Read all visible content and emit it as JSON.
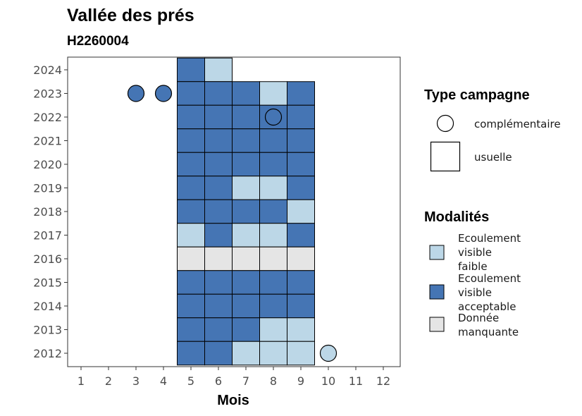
{
  "chart_data": {
    "type": "heatmap",
    "title": "Vallée des prés",
    "subtitle": "H2260004",
    "xlabel": "Mois",
    "ylabel": "",
    "x_ticks": [
      "1",
      "2",
      "3",
      "4",
      "5",
      "6",
      "7",
      "8",
      "9",
      "10",
      "11",
      "12"
    ],
    "y_ticks": [
      "2012",
      "2013",
      "2014",
      "2015",
      "2016",
      "2017",
      "2018",
      "2019",
      "2020",
      "2021",
      "2022",
      "2023",
      "2024"
    ],
    "xlim": [
      0.5,
      12.5
    ],
    "ylim": [
      2011.5,
      2024.5
    ],
    "grid": false,
    "legend_position": "right",
    "modalites": [
      {
        "key": "faible",
        "label_lines": [
          "Ecoulement",
          "visible",
          "faible"
        ],
        "color": "#bcd7e7"
      },
      {
        "key": "acceptable",
        "label_lines": [
          "Ecoulement",
          "visible",
          "acceptable"
        ],
        "color": "#4575b4"
      },
      {
        "key": "manquante",
        "label_lines": [
          "Donnée",
          "manquante"
        ],
        "color": "#e5e5e5"
      }
    ],
    "type_campagne": {
      "title": "Type campagne",
      "items": [
        {
          "key": "complementaire",
          "label": "complémentaire",
          "shape": "circle"
        },
        {
          "key": "usuelle",
          "label": "usuelle",
          "shape": "square"
        }
      ]
    },
    "modalites_title": "Modalités",
    "usuelle": [
      {
        "year": 2024,
        "month": 5,
        "modalite": "acceptable"
      },
      {
        "year": 2024,
        "month": 6,
        "modalite": "faible"
      },
      {
        "year": 2023,
        "month": 5,
        "modalite": "acceptable"
      },
      {
        "year": 2023,
        "month": 6,
        "modalite": "acceptable"
      },
      {
        "year": 2023,
        "month": 7,
        "modalite": "acceptable"
      },
      {
        "year": 2023,
        "month": 8,
        "modalite": "faible"
      },
      {
        "year": 2023,
        "month": 9,
        "modalite": "acceptable"
      },
      {
        "year": 2022,
        "month": 5,
        "modalite": "acceptable"
      },
      {
        "year": 2022,
        "month": 6,
        "modalite": "acceptable"
      },
      {
        "year": 2022,
        "month": 7,
        "modalite": "acceptable"
      },
      {
        "year": 2022,
        "month": 8,
        "modalite": "acceptable"
      },
      {
        "year": 2022,
        "month": 9,
        "modalite": "acceptable"
      },
      {
        "year": 2021,
        "month": 5,
        "modalite": "acceptable"
      },
      {
        "year": 2021,
        "month": 6,
        "modalite": "acceptable"
      },
      {
        "year": 2021,
        "month": 7,
        "modalite": "acceptable"
      },
      {
        "year": 2021,
        "month": 8,
        "modalite": "acceptable"
      },
      {
        "year": 2021,
        "month": 9,
        "modalite": "acceptable"
      },
      {
        "year": 2020,
        "month": 5,
        "modalite": "acceptable"
      },
      {
        "year": 2020,
        "month": 6,
        "modalite": "acceptable"
      },
      {
        "year": 2020,
        "month": 7,
        "modalite": "acceptable"
      },
      {
        "year": 2020,
        "month": 8,
        "modalite": "acceptable"
      },
      {
        "year": 2020,
        "month": 9,
        "modalite": "acceptable"
      },
      {
        "year": 2019,
        "month": 5,
        "modalite": "acceptable"
      },
      {
        "year": 2019,
        "month": 6,
        "modalite": "acceptable"
      },
      {
        "year": 2019,
        "month": 7,
        "modalite": "faible"
      },
      {
        "year": 2019,
        "month": 8,
        "modalite": "faible"
      },
      {
        "year": 2019,
        "month": 9,
        "modalite": "acceptable"
      },
      {
        "year": 2018,
        "month": 5,
        "modalite": "acceptable"
      },
      {
        "year": 2018,
        "month": 6,
        "modalite": "acceptable"
      },
      {
        "year": 2018,
        "month": 7,
        "modalite": "acceptable"
      },
      {
        "year": 2018,
        "month": 8,
        "modalite": "acceptable"
      },
      {
        "year": 2018,
        "month": 9,
        "modalite": "faible"
      },
      {
        "year": 2017,
        "month": 5,
        "modalite": "faible"
      },
      {
        "year": 2017,
        "month": 6,
        "modalite": "acceptable"
      },
      {
        "year": 2017,
        "month": 7,
        "modalite": "faible"
      },
      {
        "year": 2017,
        "month": 8,
        "modalite": "faible"
      },
      {
        "year": 2017,
        "month": 9,
        "modalite": "acceptable"
      },
      {
        "year": 2016,
        "month": 5,
        "modalite": "manquante"
      },
      {
        "year": 2016,
        "month": 6,
        "modalite": "manquante"
      },
      {
        "year": 2016,
        "month": 7,
        "modalite": "manquante"
      },
      {
        "year": 2016,
        "month": 8,
        "modalite": "manquante"
      },
      {
        "year": 2016,
        "month": 9,
        "modalite": "manquante"
      },
      {
        "year": 2015,
        "month": 5,
        "modalite": "acceptable"
      },
      {
        "year": 2015,
        "month": 6,
        "modalite": "acceptable"
      },
      {
        "year": 2015,
        "month": 7,
        "modalite": "acceptable"
      },
      {
        "year": 2015,
        "month": 8,
        "modalite": "acceptable"
      },
      {
        "year": 2015,
        "month": 9,
        "modalite": "acceptable"
      },
      {
        "year": 2014,
        "month": 5,
        "modalite": "acceptable"
      },
      {
        "year": 2014,
        "month": 6,
        "modalite": "acceptable"
      },
      {
        "year": 2014,
        "month": 7,
        "modalite": "acceptable"
      },
      {
        "year": 2014,
        "month": 8,
        "modalite": "acceptable"
      },
      {
        "year": 2014,
        "month": 9,
        "modalite": "acceptable"
      },
      {
        "year": 2013,
        "month": 5,
        "modalite": "acceptable"
      },
      {
        "year": 2013,
        "month": 6,
        "modalite": "acceptable"
      },
      {
        "year": 2013,
        "month": 7,
        "modalite": "acceptable"
      },
      {
        "year": 2013,
        "month": 8,
        "modalite": "faible"
      },
      {
        "year": 2013,
        "month": 9,
        "modalite": "faible"
      },
      {
        "year": 2012,
        "month": 5,
        "modalite": "acceptable"
      },
      {
        "year": 2012,
        "month": 6,
        "modalite": "acceptable"
      },
      {
        "year": 2012,
        "month": 7,
        "modalite": "faible"
      },
      {
        "year": 2012,
        "month": 8,
        "modalite": "faible"
      },
      {
        "year": 2012,
        "month": 9,
        "modalite": "faible"
      }
    ],
    "complementaire": [
      {
        "year": 2023,
        "month": 3,
        "modalite": "acceptable"
      },
      {
        "year": 2023,
        "month": 4,
        "modalite": "acceptable"
      },
      {
        "year": 2022,
        "month": 8,
        "modalite": "acceptable"
      },
      {
        "year": 2012,
        "month": 10,
        "modalite": "faible"
      }
    ]
  }
}
